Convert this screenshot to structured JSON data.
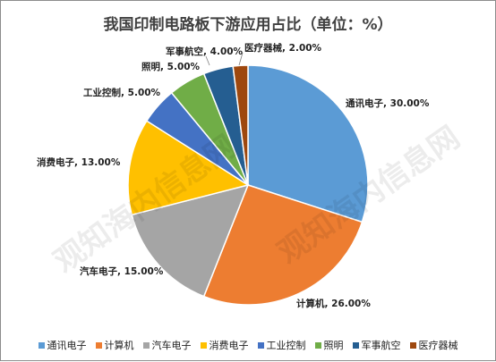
{
  "chart_data": {
    "type": "pie",
    "title": "我国印制电路板下游应用占比（单位：%）",
    "slices": [
      {
        "name": "通讯电子",
        "value": 30.0,
        "label": "通讯电子, 30.00%",
        "color": "#5b9bd5"
      },
      {
        "name": "计算机",
        "value": 26.0,
        "label": "计算机, 26.00%",
        "color": "#ed7d31"
      },
      {
        "name": "汽车电子",
        "value": 15.0,
        "label": "汽车电子, 15.00%",
        "color": "#a5a5a5"
      },
      {
        "name": "消费电子",
        "value": 13.0,
        "label": "消费电子, 13.00%",
        "color": "#ffc000"
      },
      {
        "name": "工业控制",
        "value": 5.0,
        "label": "工业控制, 5.00%",
        "color": "#4472c4"
      },
      {
        "name": "照明",
        "value": 5.0,
        "label": "照明, 5.00%",
        "color": "#70ad47"
      },
      {
        "name": "军事航空",
        "value": 4.0,
        "label": "军事航空, 4.00%",
        "color": "#255e91"
      },
      {
        "name": "医疗器械",
        "value": 2.0,
        "label": "医疗器械, 2.00%",
        "color": "#9e480e"
      }
    ],
    "legend_position": "bottom"
  },
  "watermark": {
    "text": "观知海内信息网",
    "subtext": "WWW.GUANZHIHAINEI.COM"
  }
}
